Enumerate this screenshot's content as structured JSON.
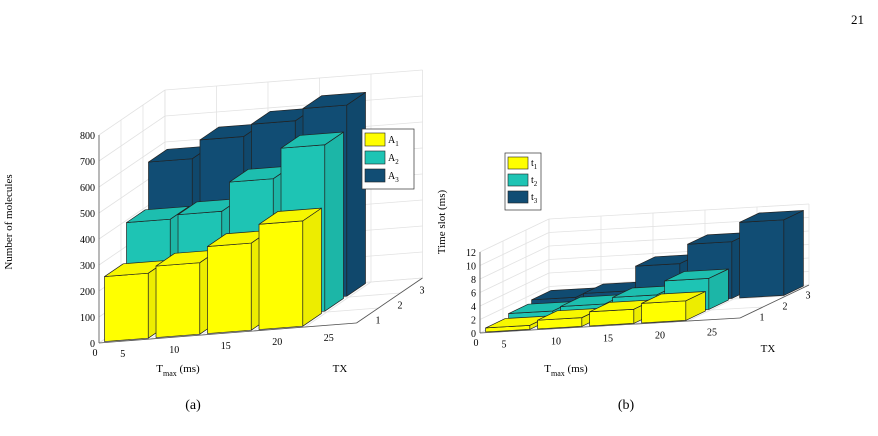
{
  "page_number": "21",
  "colors": {
    "A1": "#ffff00",
    "A2": "#1ec4b4",
    "A3": "#114d74",
    "edge": "#222222"
  },
  "chart_data": [
    {
      "type": "bar3d",
      "caption": "(a)",
      "xlabel_main": "T",
      "xlabel_sub": "max",
      "xlabel_unit": " (ms)",
      "ylabel": "TX",
      "zlabel": "Number of molecules",
      "categories": [
        "5",
        "10",
        "15",
        "20",
        "25"
      ],
      "tx_ticks": [
        "1",
        "2",
        "3"
      ],
      "z_ticks": [
        "0",
        "100",
        "200",
        "300",
        "400",
        "500",
        "600",
        "700",
        "800"
      ],
      "zlim": [
        0,
        800
      ],
      "legend": [
        {
          "main": "A",
          "sub": "1",
          "color": "#ffff00"
        },
        {
          "main": "A",
          "sub": "2",
          "color": "#1ec4b4"
        },
        {
          "main": "A",
          "sub": "3",
          "color": "#114d74"
        }
      ],
      "series": [
        {
          "name": "A1",
          "values": [
            250,
            275,
            335,
            405,
            0
          ]
        },
        {
          "name": "A2",
          "values": [
            400,
            415,
            525,
            640,
            0
          ]
        },
        {
          "name": "A3",
          "values": [
            575,
            645,
            690,
            735,
            0
          ]
        }
      ]
    },
    {
      "type": "bar3d",
      "caption": "(b)",
      "xlabel_main": "T",
      "xlabel_sub": "max",
      "xlabel_unit": " (ms)",
      "ylabel": "TX",
      "zlabel": "Time slot (ms)",
      "categories": [
        "5",
        "10",
        "15",
        "20",
        "25"
      ],
      "tx_ticks": [
        "1",
        "2",
        "3"
      ],
      "z_ticks": [
        "0",
        "2",
        "4",
        "6",
        "8",
        "10",
        "12"
      ],
      "zlim": [
        0,
        12
      ],
      "legend": [
        {
          "main": "t",
          "sub": "1",
          "color": "#ffff00"
        },
        {
          "main": "t",
          "sub": "2",
          "color": "#1ec4b4"
        },
        {
          "main": "t",
          "sub": "3",
          "color": "#114d74"
        }
      ],
      "series": [
        {
          "name": "t1",
          "values": [
            0.6,
            1.3,
            2.1,
            2.9,
            0
          ]
        },
        {
          "name": "t2",
          "values": [
            1.1,
            1.7,
            2.6,
            4.6,
            0
          ]
        },
        {
          "name": "t3",
          "values": [
            1.5,
            2.0,
            5.6,
            8.4,
            11.2
          ]
        }
      ]
    }
  ]
}
